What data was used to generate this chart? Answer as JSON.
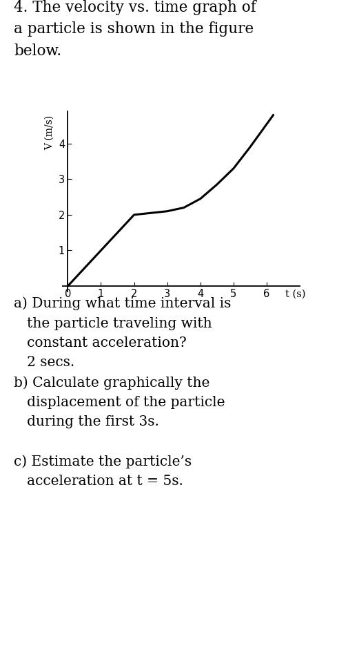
{
  "title_line1": "4. The velocity vs. time graph of",
  "title_line2": "a particle is shown in the figure",
  "title_line3": "below.",
  "graph_curve_t": [
    0,
    0.5,
    1.0,
    1.5,
    2.0,
    2.5,
    3.0,
    3.5,
    4.0,
    4.5,
    5.0,
    5.5,
    6.2
  ],
  "graph_curve_v": [
    0,
    0.5,
    1.0,
    1.5,
    2.0,
    2.05,
    2.1,
    2.2,
    2.45,
    2.85,
    3.3,
    3.9,
    4.8
  ],
  "xlabel": "t (s)",
  "ylabel": "V (m/s)",
  "xlim": [
    -0.15,
    7.0
  ],
  "ylim": [
    -0.15,
    4.9
  ],
  "xticks": [
    0,
    1,
    2,
    3,
    4,
    5,
    6
  ],
  "yticks": [
    1,
    2,
    3,
    4
  ],
  "line_color": "#000000",
  "line_width": 2.2,
  "background_color": "#ffffff",
  "qa_text_a1": "a) During what time interval is",
  "qa_text_a2": "   the particle traveling with",
  "qa_text_a3": "   constant acceleration?",
  "qa_text_a4": "   2 secs.",
  "qa_text_b1": "b) Calculate graphically the",
  "qa_text_b2": "   displacement of the particle",
  "qa_text_b3": "   during the first 3s.",
  "qa_text_c1": "c) Estimate the particle’s",
  "qa_text_c2": "   acceleration at t = 5s.",
  "font_size_qa": 14.5,
  "font_size_title": 15.5,
  "tick_fontsize": 10.5
}
